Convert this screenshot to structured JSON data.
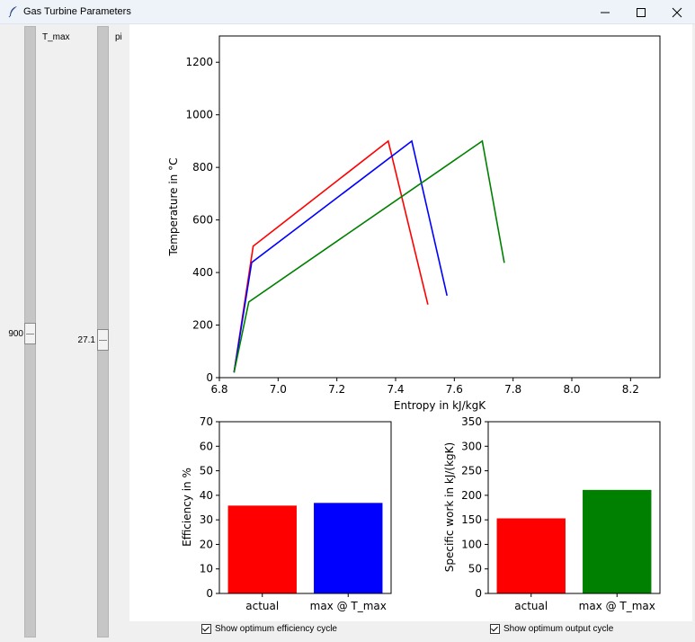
{
  "window": {
    "title": "Gas Turbine Parameters"
  },
  "sliders": [
    {
      "label": "T_max",
      "value": "900"
    },
    {
      "label": "pi",
      "value": "27.1"
    }
  ],
  "checkboxes": [
    {
      "label": "Show optimum efficiency cycle",
      "checked": true
    },
    {
      "label": "Show optimum output cycle",
      "checked": true
    }
  ],
  "chart_data": [
    {
      "type": "line",
      "xlabel": "Entropy in kJ/kgK",
      "ylabel": "Temperature in °C",
      "xlim": [
        6.8,
        8.3
      ],
      "ylim": [
        0,
        1300
      ],
      "xticks": [
        "6.8",
        "7.0",
        "7.2",
        "7.4",
        "7.6",
        "7.8",
        "8.0",
        "8.2"
      ],
      "yticks": [
        "0",
        "200",
        "400",
        "600",
        "800",
        "1000",
        "1200"
      ],
      "grid": false,
      "series": [
        {
          "color": "#ff0000",
          "x": [
            6.85,
            6.915,
            7.375,
            7.51
          ],
          "y": [
            20,
            500,
            900,
            278
          ]
        },
        {
          "color": "#0000ff",
          "x": [
            6.85,
            6.91,
            7.455,
            7.575
          ],
          "y": [
            20,
            438,
            900,
            312
          ]
        },
        {
          "color": "#008000",
          "x": [
            6.85,
            6.9,
            7.695,
            7.77
          ],
          "y": [
            20,
            288,
            900,
            437
          ]
        }
      ]
    },
    {
      "type": "bar",
      "ylabel": "Efficiency in %",
      "categories": [
        "actual",
        "max @ T_max"
      ],
      "values": [
        35.8,
        36.9
      ],
      "colors": [
        "#ff0000",
        "#0000ff"
      ],
      "ylim": [
        0,
        70
      ],
      "yticks": [
        "0",
        "10",
        "20",
        "30",
        "40",
        "50",
        "60",
        "70"
      ]
    },
    {
      "type": "bar",
      "ylabel": "Specific work in kJ/(kgK)",
      "categories": [
        "actual",
        "max @ T_max"
      ],
      "values": [
        153,
        211
      ],
      "colors": [
        "#ff0000",
        "#008000"
      ],
      "ylim": [
        0,
        350
      ],
      "yticks": [
        "0",
        "50",
        "100",
        "150",
        "200",
        "250",
        "300",
        "350"
      ]
    }
  ]
}
